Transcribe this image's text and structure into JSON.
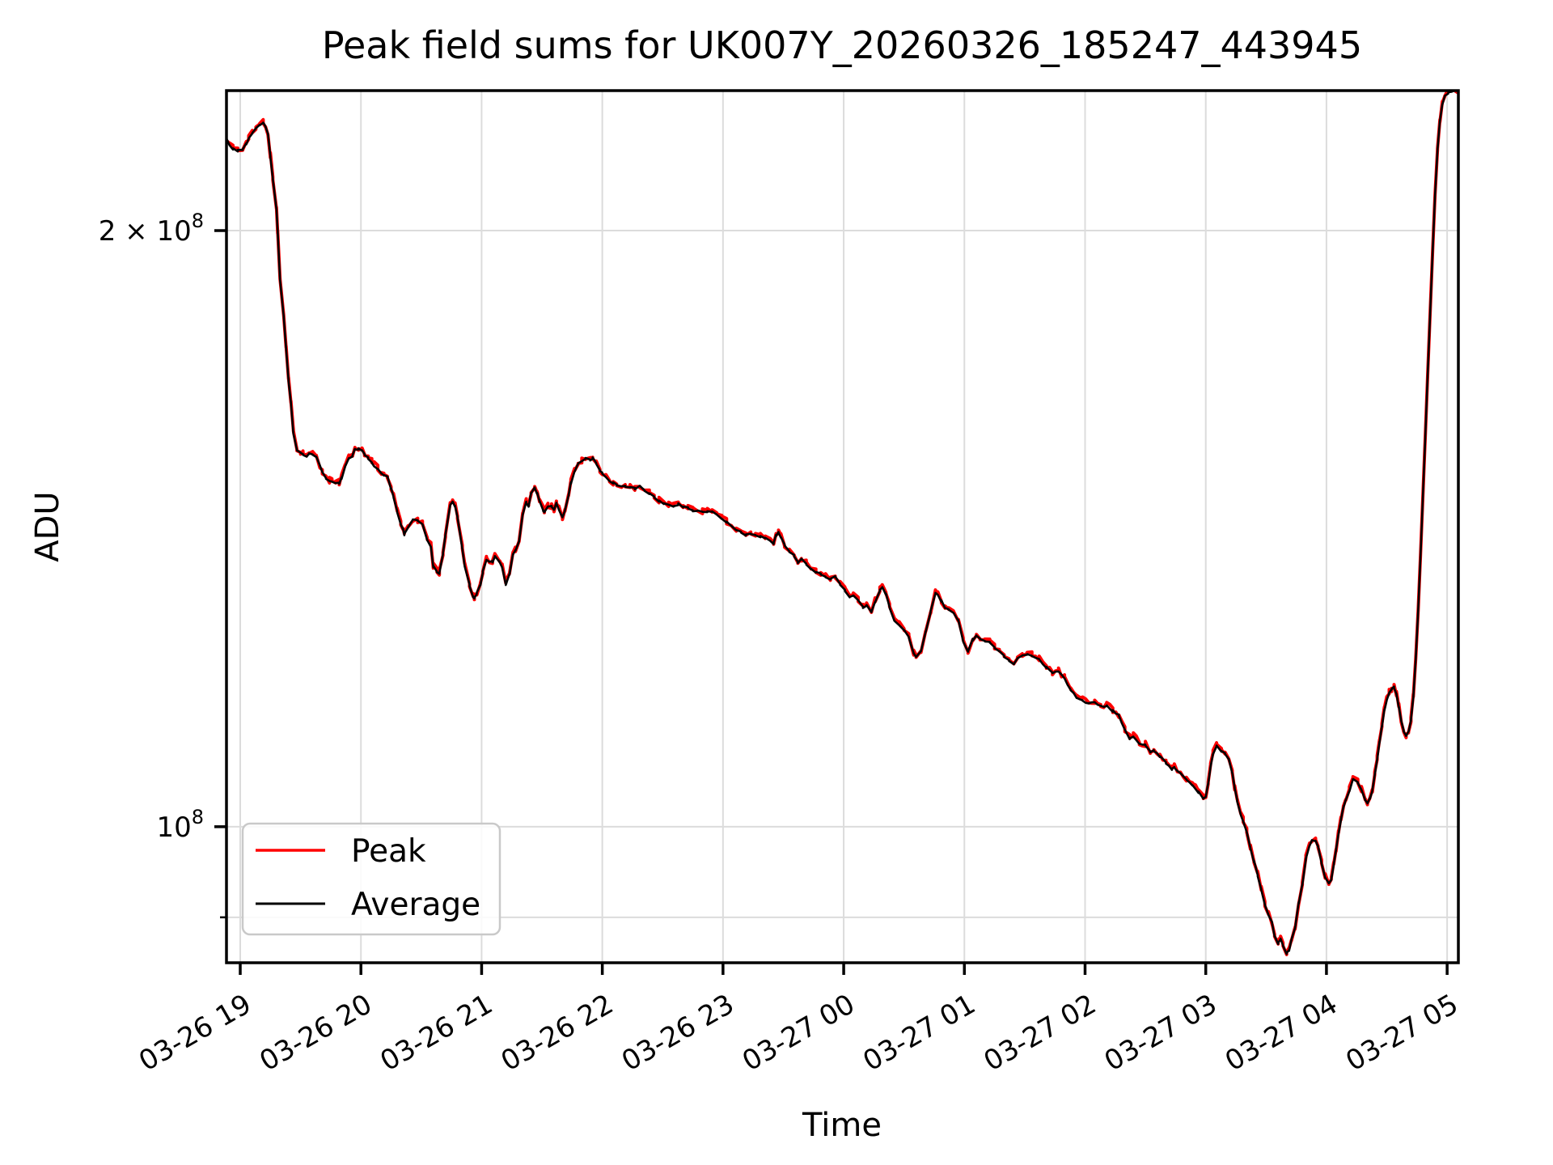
{
  "chart_data": {
    "type": "line",
    "title": "Peak field sums for UK007Y_20260326_185247_443945",
    "xlabel": "Time",
    "ylabel": "ADU",
    "y_scale": "log",
    "grid": true,
    "legend": {
      "position": "lower left",
      "entries": [
        "Peak",
        "Average"
      ]
    },
    "x_axis": {
      "description": "time of night, 03-26 18:53 through 03-27 ~05:05",
      "lim_hours": [
        18.886,
        29.093
      ],
      "tick_hours": [
        19,
        20,
        21,
        22,
        23,
        24,
        25,
        26,
        27,
        28,
        29
      ],
      "tick_labels": [
        "03-26 19",
        "03-26 20",
        "03-26 21",
        "03-26 22",
        "03-26 23",
        "03-27 00",
        "03-27 01",
        "03-27 02",
        "03-27 03",
        "03-27 04",
        "03-27 05"
      ]
    },
    "y_axis": {
      "unit_scale": 100000000.0,
      "lim_1e8": [
        0.8537,
        2.3535
      ],
      "ticks": [
        {
          "value_1e8": 2.0,
          "base": "2 × 10",
          "exp": "8",
          "major": false
        },
        {
          "value_1e8": 1.0,
          "base": "10",
          "exp": "8",
          "major": true
        }
      ],
      "minor_gridlines_1e8": [
        0.9
      ]
    },
    "series": [
      {
        "name": "Peak",
        "color": "#ff0000",
        "note": "nearly identical to Average; red fringe peeks out ~0.3-0.6% around it"
      },
      {
        "name": "Average",
        "color": "#000000"
      }
    ],
    "points_hours_vs_adu_1e8": [
      [
        18.886,
        2.224
      ],
      [
        18.91,
        2.21
      ],
      [
        18.94,
        2.199
      ],
      [
        18.98,
        2.195
      ],
      [
        19.02,
        2.197
      ],
      [
        19.05,
        2.213
      ],
      [
        19.07,
        2.227
      ],
      [
        19.1,
        2.24
      ],
      [
        19.13,
        2.254
      ],
      [
        19.16,
        2.262
      ],
      [
        19.19,
        2.266
      ],
      [
        19.21,
        2.259
      ],
      [
        19.23,
        2.237
      ],
      [
        19.25,
        2.18
      ],
      [
        19.27,
        2.124
      ],
      [
        19.3,
        2.052
      ],
      [
        19.31,
        1.998
      ],
      [
        19.33,
        1.889
      ],
      [
        19.36,
        1.811
      ],
      [
        19.38,
        1.744
      ],
      [
        19.4,
        1.68
      ],
      [
        19.42,
        1.636
      ],
      [
        19.44,
        1.58
      ],
      [
        19.47,
        1.55
      ],
      [
        19.5,
        1.544
      ],
      [
        19.52,
        1.541
      ],
      [
        19.55,
        1.539
      ],
      [
        19.57,
        1.543
      ],
      [
        19.6,
        1.541
      ],
      [
        19.63,
        1.537
      ],
      [
        19.66,
        1.521
      ],
      [
        19.68,
        1.509
      ],
      [
        19.71,
        1.5
      ],
      [
        19.74,
        1.494
      ],
      [
        19.76,
        1.493
      ],
      [
        19.79,
        1.492
      ],
      [
        19.82,
        1.491
      ],
      [
        19.84,
        1.5
      ],
      [
        19.87,
        1.519
      ],
      [
        19.9,
        1.535
      ],
      [
        19.93,
        1.539
      ],
      [
        19.95,
        1.55
      ],
      [
        19.98,
        1.552
      ],
      [
        20.01,
        1.548
      ],
      [
        20.03,
        1.541
      ],
      [
        20.06,
        1.535
      ],
      [
        20.09,
        1.528
      ],
      [
        20.11,
        1.522
      ],
      [
        20.14,
        1.516
      ],
      [
        20.17,
        1.508
      ],
      [
        20.19,
        1.505
      ],
      [
        20.22,
        1.502
      ],
      [
        20.25,
        1.482
      ],
      [
        20.27,
        1.467
      ],
      [
        20.3,
        1.443
      ],
      [
        20.33,
        1.421
      ],
      [
        20.35,
        1.413
      ],
      [
        20.36,
        1.405
      ],
      [
        20.39,
        1.417
      ],
      [
        20.43,
        1.429
      ],
      [
        20.47,
        1.427
      ],
      [
        20.51,
        1.422
      ],
      [
        20.55,
        1.395
      ],
      [
        20.58,
        1.385
      ],
      [
        20.6,
        1.353
      ],
      [
        20.63,
        1.345
      ],
      [
        20.65,
        1.343
      ],
      [
        20.68,
        1.374
      ],
      [
        20.7,
        1.403
      ],
      [
        20.74,
        1.454
      ],
      [
        20.76,
        1.458
      ],
      [
        20.78,
        1.451
      ],
      [
        20.8,
        1.432
      ],
      [
        20.84,
        1.382
      ],
      [
        20.86,
        1.353
      ],
      [
        20.9,
        1.324
      ],
      [
        20.93,
        1.306
      ],
      [
        20.94,
        1.304
      ],
      [
        20.96,
        1.312
      ],
      [
        20.99,
        1.324
      ],
      [
        21.01,
        1.345
      ],
      [
        21.04,
        1.363
      ],
      [
        21.09,
        1.361
      ],
      [
        21.11,
        1.37
      ],
      [
        21.15,
        1.361
      ],
      [
        21.17,
        1.351
      ],
      [
        21.2,
        1.326
      ],
      [
        21.23,
        1.341
      ],
      [
        21.26,
        1.373
      ],
      [
        21.28,
        1.379
      ],
      [
        21.31,
        1.393
      ],
      [
        21.34,
        1.436
      ],
      [
        21.37,
        1.459
      ],
      [
        21.39,
        1.451
      ],
      [
        21.41,
        1.475
      ],
      [
        21.44,
        1.483
      ],
      [
        21.46,
        1.473
      ],
      [
        21.48,
        1.459
      ],
      [
        21.51,
        1.445
      ],
      [
        21.52,
        1.442
      ],
      [
        21.55,
        1.452
      ],
      [
        21.58,
        1.451
      ],
      [
        21.6,
        1.445
      ],
      [
        21.62,
        1.458
      ],
      [
        21.64,
        1.447
      ],
      [
        21.67,
        1.432
      ],
      [
        21.69,
        1.444
      ],
      [
        21.72,
        1.47
      ],
      [
        21.74,
        1.491
      ],
      [
        21.77,
        1.51
      ],
      [
        21.8,
        1.525
      ],
      [
        21.83,
        1.529
      ],
      [
        21.86,
        1.535
      ],
      [
        21.9,
        1.532
      ],
      [
        21.92,
        1.535
      ],
      [
        21.95,
        1.525
      ],
      [
        21.98,
        1.513
      ],
      [
        22.0,
        1.509
      ],
      [
        22.03,
        1.503
      ],
      [
        22.06,
        1.495
      ],
      [
        22.09,
        1.491
      ],
      [
        22.12,
        1.488
      ],
      [
        22.16,
        1.487
      ],
      [
        22.19,
        1.486
      ],
      [
        22.23,
        1.485
      ],
      [
        22.27,
        1.482
      ],
      [
        22.31,
        1.485
      ],
      [
        22.35,
        1.479
      ],
      [
        22.39,
        1.474
      ],
      [
        22.43,
        1.468
      ],
      [
        22.47,
        1.46
      ],
      [
        22.51,
        1.456
      ],
      [
        22.55,
        1.454
      ],
      [
        22.59,
        1.452
      ],
      [
        22.63,
        1.455
      ],
      [
        22.67,
        1.451
      ],
      [
        22.71,
        1.449
      ],
      [
        22.75,
        1.444
      ],
      [
        22.79,
        1.444
      ],
      [
        22.83,
        1.442
      ],
      [
        22.87,
        1.442
      ],
      [
        22.91,
        1.443
      ],
      [
        22.95,
        1.437
      ],
      [
        22.99,
        1.431
      ],
      [
        23.03,
        1.425
      ],
      [
        23.07,
        1.419
      ],
      [
        23.11,
        1.413
      ],
      [
        23.15,
        1.408
      ],
      [
        23.19,
        1.404
      ],
      [
        23.23,
        1.405
      ],
      [
        23.27,
        1.403
      ],
      [
        23.31,
        1.401
      ],
      [
        23.35,
        1.399
      ],
      [
        23.39,
        1.393
      ],
      [
        23.42,
        1.39
      ],
      [
        23.44,
        1.403
      ],
      [
        23.46,
        1.409
      ],
      [
        23.48,
        1.4
      ],
      [
        23.51,
        1.387
      ],
      [
        23.55,
        1.377
      ],
      [
        23.59,
        1.37
      ],
      [
        23.62,
        1.36
      ],
      [
        23.65,
        1.365
      ],
      [
        23.69,
        1.357
      ],
      [
        23.73,
        1.35
      ],
      [
        23.77,
        1.345
      ],
      [
        23.81,
        1.342
      ],
      [
        23.85,
        1.337
      ],
      [
        23.89,
        1.333
      ],
      [
        23.93,
        1.337
      ],
      [
        23.97,
        1.326
      ],
      [
        24.01,
        1.316
      ],
      [
        24.05,
        1.306
      ],
      [
        24.08,
        1.308
      ],
      [
        24.12,
        1.3
      ],
      [
        24.16,
        1.291
      ],
      [
        24.19,
        1.294
      ],
      [
        24.23,
        1.284
      ],
      [
        24.26,
        1.299
      ],
      [
        24.3,
        1.316
      ],
      [
        24.32,
        1.321
      ],
      [
        24.35,
        1.311
      ],
      [
        24.38,
        1.291
      ],
      [
        24.42,
        1.27
      ],
      [
        24.46,
        1.264
      ],
      [
        24.5,
        1.258
      ],
      [
        24.54,
        1.246
      ],
      [
        24.58,
        1.223
      ],
      [
        24.6,
        1.219
      ],
      [
        24.64,
        1.226
      ],
      [
        24.68,
        1.255
      ],
      [
        24.72,
        1.284
      ],
      [
        24.76,
        1.312
      ],
      [
        24.78,
        1.308
      ],
      [
        24.81,
        1.3
      ],
      [
        24.84,
        1.289
      ],
      [
        24.87,
        1.287
      ],
      [
        24.91,
        1.282
      ],
      [
        24.95,
        1.272
      ],
      [
        24.99,
        1.24
      ],
      [
        25.03,
        1.226
      ],
      [
        25.07,
        1.243
      ],
      [
        25.1,
        1.249
      ],
      [
        25.13,
        1.245
      ],
      [
        25.17,
        1.241
      ],
      [
        25.21,
        1.239
      ],
      [
        25.25,
        1.231
      ],
      [
        25.29,
        1.226
      ],
      [
        25.33,
        1.219
      ],
      [
        25.37,
        1.213
      ],
      [
        25.41,
        1.207
      ],
      [
        25.44,
        1.216
      ],
      [
        25.48,
        1.22
      ],
      [
        25.52,
        1.222
      ],
      [
        25.56,
        1.22
      ],
      [
        25.62,
        1.214
      ],
      [
        25.68,
        1.204
      ],
      [
        25.73,
        1.196
      ],
      [
        25.78,
        1.197
      ],
      [
        25.83,
        1.188
      ],
      [
        25.88,
        1.173
      ],
      [
        25.93,
        1.162
      ],
      [
        25.98,
        1.158
      ],
      [
        26.03,
        1.154
      ],
      [
        26.08,
        1.156
      ],
      [
        26.13,
        1.15
      ],
      [
        26.18,
        1.151
      ],
      [
        26.23,
        1.144
      ],
      [
        26.28,
        1.138
      ],
      [
        26.33,
        1.119
      ],
      [
        26.37,
        1.108
      ],
      [
        26.4,
        1.11
      ],
      [
        26.45,
        1.102
      ],
      [
        26.5,
        1.1
      ],
      [
        26.54,
        1.091
      ],
      [
        26.57,
        1.092
      ],
      [
        26.62,
        1.085
      ],
      [
        26.67,
        1.077
      ],
      [
        26.72,
        1.069
      ],
      [
        26.74,
        1.072
      ],
      [
        26.79,
        1.064
      ],
      [
        26.84,
        1.056
      ],
      [
        26.89,
        1.049
      ],
      [
        26.94,
        1.041
      ],
      [
        26.98,
        1.033
      ],
      [
        27.0,
        1.036
      ],
      [
        27.02,
        1.051
      ],
      [
        27.04,
        1.073
      ],
      [
        27.06,
        1.089
      ],
      [
        27.09,
        1.098
      ],
      [
        27.13,
        1.091
      ],
      [
        27.16,
        1.089
      ],
      [
        27.19,
        1.082
      ],
      [
        27.22,
        1.065
      ],
      [
        27.24,
        1.046
      ],
      [
        27.26,
        1.031
      ],
      [
        27.29,
        1.013
      ],
      [
        27.31,
        1.007
      ],
      [
        27.34,
        0.994
      ],
      [
        27.37,
        0.976
      ],
      [
        27.4,
        0.96
      ],
      [
        27.43,
        0.945
      ],
      [
        27.46,
        0.929
      ],
      [
        27.49,
        0.913
      ],
      [
        27.52,
        0.903
      ],
      [
        27.55,
        0.894
      ],
      [
        27.57,
        0.881
      ],
      [
        27.6,
        0.873
      ],
      [
        27.62,
        0.877
      ],
      [
        27.64,
        0.871
      ],
      [
        27.67,
        0.863
      ],
      [
        27.69,
        0.866
      ],
      [
        27.71,
        0.877
      ],
      [
        27.74,
        0.888
      ],
      [
        27.77,
        0.915
      ],
      [
        27.8,
        0.935
      ],
      [
        27.83,
        0.963
      ],
      [
        27.86,
        0.979
      ],
      [
        27.88,
        0.985
      ],
      [
        27.91,
        0.984
      ],
      [
        27.93,
        0.978
      ],
      [
        27.96,
        0.958
      ],
      [
        27.99,
        0.943
      ],
      [
        28.02,
        0.936
      ],
      [
        28.04,
        0.94
      ],
      [
        28.06,
        0.956
      ],
      [
        28.08,
        0.974
      ],
      [
        28.1,
        0.992
      ],
      [
        28.12,
        1.008
      ],
      [
        28.14,
        1.022
      ],
      [
        28.16,
        1.032
      ],
      [
        28.19,
        1.043
      ],
      [
        28.22,
        1.056
      ],
      [
        28.26,
        1.052
      ],
      [
        28.29,
        1.043
      ],
      [
        28.32,
        1.031
      ],
      [
        28.34,
        1.028
      ],
      [
        28.36,
        1.033
      ],
      [
        28.38,
        1.043
      ],
      [
        28.4,
        1.062
      ],
      [
        28.42,
        1.082
      ],
      [
        28.44,
        1.104
      ],
      [
        28.46,
        1.124
      ],
      [
        28.48,
        1.145
      ],
      [
        28.5,
        1.159
      ],
      [
        28.52,
        1.168
      ],
      [
        28.54,
        1.173
      ],
      [
        28.56,
        1.176
      ],
      [
        28.58,
        1.167
      ],
      [
        28.6,
        1.149
      ],
      [
        28.62,
        1.13
      ],
      [
        28.64,
        1.117
      ],
      [
        28.66,
        1.111
      ],
      [
        28.68,
        1.117
      ],
      [
        28.7,
        1.132
      ],
      [
        28.72,
        1.162
      ],
      [
        28.74,
        1.215
      ],
      [
        28.76,
        1.285
      ],
      [
        28.78,
        1.373
      ],
      [
        28.8,
        1.473
      ],
      [
        28.82,
        1.58
      ],
      [
        28.84,
        1.696
      ],
      [
        28.86,
        1.82
      ],
      [
        28.88,
        1.952
      ],
      [
        28.9,
        2.085
      ],
      [
        28.92,
        2.195
      ],
      [
        28.94,
        2.273
      ],
      [
        28.96,
        2.316
      ],
      [
        28.98,
        2.338
      ],
      [
        29.01,
        2.347
      ],
      [
        29.04,
        2.351
      ],
      [
        29.093,
        2.351
      ]
    ]
  },
  "colors": {
    "background": "#ffffff",
    "spine": "#000000",
    "grid": "#dcdcdc",
    "tick_label": "#000000",
    "legend_border": "#c9c9c9",
    "peak_line": "#ff0000",
    "average_line": "#000000"
  }
}
